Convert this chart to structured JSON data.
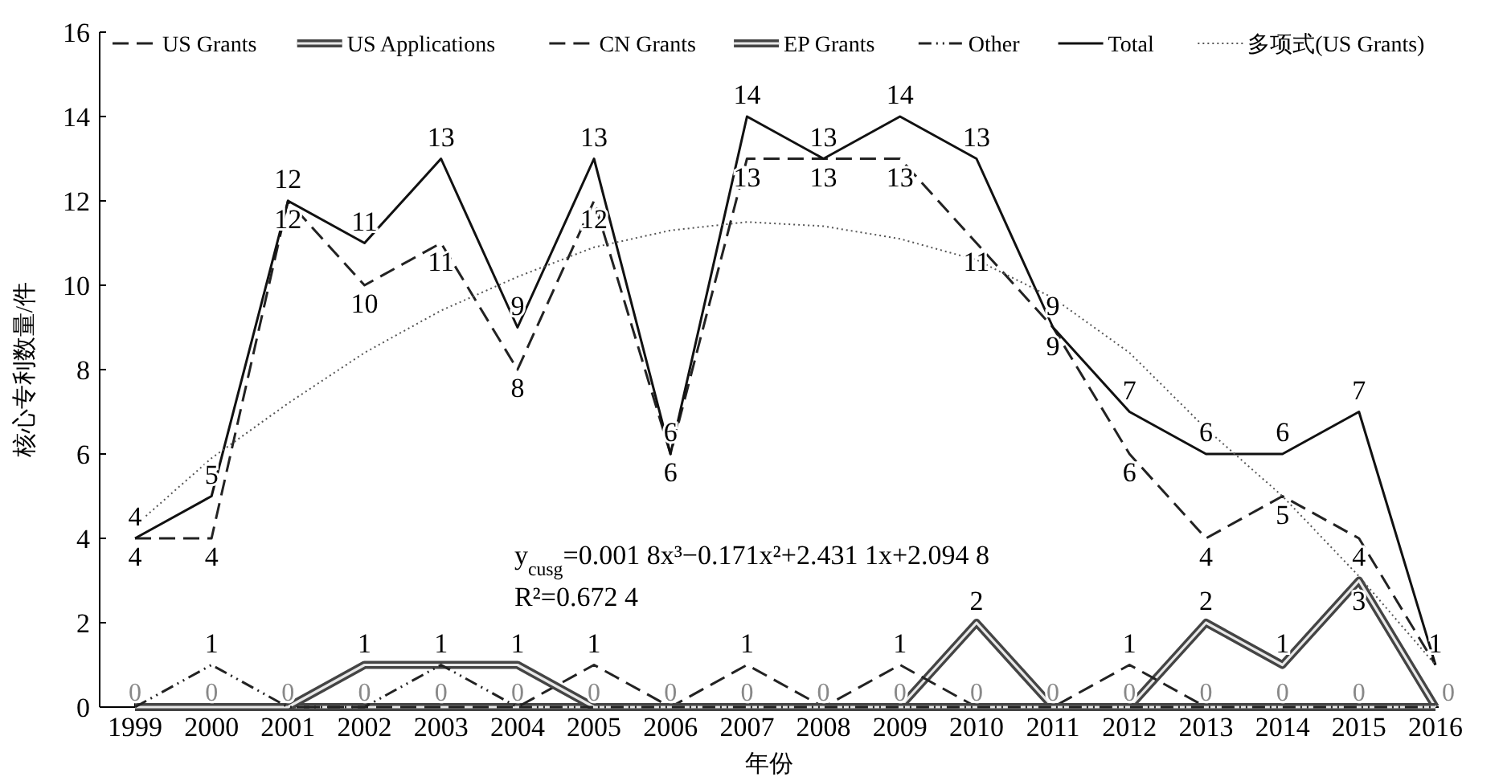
{
  "chart_data": {
    "type": "line",
    "xlabel": "年份",
    "ylabel": "核心专利数量/件",
    "categories": [
      "1999",
      "2000",
      "2001",
      "2002",
      "2003",
      "2004",
      "2005",
      "2006",
      "2007",
      "2008",
      "2009",
      "2010",
      "2011",
      "2012",
      "2013",
      "2014",
      "2015",
      "2016"
    ],
    "ylim": [
      0,
      16
    ],
    "yticks": [
      0,
      2,
      4,
      6,
      8,
      10,
      12,
      14,
      16
    ],
    "grid": false,
    "legend": "top",
    "series": [
      {
        "name": "US Grants",
        "color": "#222222",
        "line_style": "dashed",
        "values": [
          4,
          4,
          12,
          10,
          11,
          8,
          12,
          6,
          13,
          13,
          13,
          11,
          9,
          6,
          4,
          5,
          4,
          1
        ],
        "value_labels": [
          "4",
          "4",
          "12",
          "10",
          "11",
          "8",
          "12",
          "6",
          "13",
          "13",
          "13",
          "11",
          "9",
          "6",
          "4",
          "5",
          "4",
          null
        ]
      },
      {
        "name": "US Applications",
        "color": "#444444",
        "values": [
          0,
          0,
          0,
          0,
          0,
          0,
          0,
          0,
          0,
          0,
          0,
          2,
          0,
          0,
          2,
          1,
          3,
          0
        ],
        "value_labels": [
          null,
          null,
          null,
          null,
          null,
          null,
          null,
          null,
          null,
          null,
          null,
          "2",
          null,
          null,
          "2",
          "1",
          "3",
          null
        ]
      },
      {
        "name": "CN Grants",
        "color": "#222222",
        "line_style": "dashed",
        "values": [
          0,
          0,
          0,
          0,
          0,
          0,
          1,
          0,
          1,
          0,
          1,
          0,
          0,
          1,
          0,
          0,
          0,
          0
        ],
        "value_labels": [
          null,
          null,
          null,
          null,
          null,
          null,
          "1",
          null,
          "1",
          null,
          "1",
          null,
          null,
          "1",
          null,
          null,
          null,
          null
        ]
      },
      {
        "name": "EP Grants",
        "color": "#444444",
        "values": [
          0,
          0,
          0,
          1,
          1,
          1,
          0,
          0,
          0,
          0,
          0,
          0,
          0,
          0,
          0,
          0,
          0,
          0
        ],
        "value_labels": [
          null,
          null,
          null,
          "1",
          "1",
          "1",
          null,
          null,
          null,
          null,
          null,
          null,
          null,
          null,
          null,
          null,
          null,
          null
        ]
      },
      {
        "name": "Other",
        "color": "#222222",
        "line_style": "dashdot",
        "values": [
          0,
          1,
          0,
          0,
          1,
          0,
          0,
          0,
          0,
          0,
          0,
          0,
          0,
          0,
          0,
          0,
          0,
          0
        ],
        "value_labels": [
          null,
          "1",
          null,
          null,
          null,
          null,
          null,
          null,
          null,
          null,
          null,
          null,
          null,
          null,
          null,
          null,
          null,
          null
        ]
      },
      {
        "name": "Total",
        "color": "#111111",
        "line_style": "solid",
        "values": [
          4,
          5,
          12,
          11,
          13,
          9,
          13,
          6,
          14,
          13,
          14,
          13,
          9,
          7,
          6,
          6,
          7,
          1
        ],
        "value_labels": [
          "4",
          "5",
          "12",
          "11",
          "13",
          "9",
          "13",
          "6",
          "14",
          "13",
          "14",
          "13",
          "9",
          "7",
          "6",
          "6",
          "7",
          "1"
        ]
      },
      {
        "name": "多项式(US Grants)",
        "color": "#555555",
        "line_style": "dotted",
        "values": [
          4.3,
          5.9,
          7.2,
          8.4,
          9.4,
          10.2,
          10.9,
          11.3,
          11.5,
          11.4,
          11.1,
          10.6,
          9.7,
          8.4,
          6.6,
          5,
          3.1,
          1
        ]
      }
    ],
    "annotations": [
      "y$_{cusg}$=0.001 8x³−0.171x²+2.431 1x+2.094 8",
      "R²=0.672 4",
      {
        "text": "0",
        "x": "1999",
        "y": 0
      },
      {
        "text": "0",
        "x": "2000",
        "y": 0
      },
      {
        "text": "0",
        "x": "2001",
        "y": 0
      },
      {
        "text": "0",
        "x": "2002",
        "y": 0
      },
      {
        "text": "0",
        "x": "2003",
        "y": 0
      },
      {
        "text": "0",
        "x": "2004",
        "y": 0
      },
      {
        "text": "0",
        "x": "2005",
        "y": 0
      },
      {
        "text": "0",
        "x": "2006",
        "y": 0
      },
      {
        "text": "0",
        "x": "2007",
        "y": 0
      },
      {
        "text": "0",
        "x": "2008",
        "y": 0
      },
      {
        "text": "0",
        "x": "2009",
        "y": 0
      },
      {
        "text": "0",
        "x": "2010",
        "y": 0
      },
      {
        "text": "0",
        "x": "2011",
        "y": 0
      },
      {
        "text": "0",
        "x": "2012",
        "y": 0
      },
      {
        "text": "0",
        "x": "2013",
        "y": 0
      },
      {
        "text": "0",
        "x": "2014",
        "y": 0
      },
      {
        "text": "0",
        "x": "2015",
        "y": 0
      },
      {
        "text": "0",
        "x": "2016",
        "y": 0
      }
    ]
  }
}
